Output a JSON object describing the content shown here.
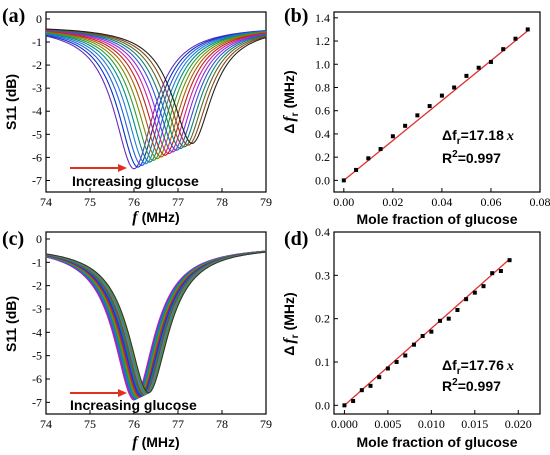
{
  "chart_data": [
    {
      "panel": "(a)",
      "type": "line",
      "xlabel_var": "f",
      "xlabel_unit": "(MHz)",
      "ylabel": "S11 (dB)",
      "xlim": [
        74,
        79
      ],
      "ylim": [
        -7.5,
        0.3
      ],
      "xticks": [
        "74",
        "75",
        "76",
        "77",
        "78",
        "79"
      ],
      "yticks": [
        "0",
        "-1",
        "-2",
        "-3",
        "-4",
        "-5",
        "-6",
        "-7"
      ],
      "annotation": "Increasing glucose",
      "curve_family": {
        "count": 16,
        "resonance_start_MHz": 76.0,
        "resonance_end_MHz": 77.32,
        "depth_start_dB": -6.35,
        "depth_end_dB": -5.25,
        "baseline_dB": -0.3
      },
      "series_colors": [
        "#6a2bb8",
        "#0033cc",
        "#2b5bd6",
        "#1f7fd0",
        "#008a8a",
        "#2aa02a",
        "#7a8a10",
        "#b05a00",
        "#c02020",
        "#d02090",
        "#8a2be2",
        "#3355cc",
        "#108070",
        "#556b2f",
        "#8b4513",
        "#222222"
      ]
    },
    {
      "panel": "(b)",
      "type": "scatter",
      "xlabel": "Mole fraction of glucose",
      "ylabel_main": "Δ",
      "ylabel_var": "f",
      "ylabel_sub": "r",
      "ylabel_unit": "(MHz)",
      "xlim": [
        -0.004,
        0.08
      ],
      "ylim": [
        -0.1,
        1.45
      ],
      "xticks": [
        "0.00",
        "0.02",
        "0.04",
        "0.06",
        "0.08"
      ],
      "yticks": [
        "0.0",
        "0.2",
        "0.4",
        "0.6",
        "0.8",
        "1.0",
        "1.2",
        "1.4"
      ],
      "x": [
        0.0,
        0.005,
        0.01,
        0.015,
        0.02,
        0.025,
        0.03,
        0.035,
        0.04,
        0.045,
        0.05,
        0.055,
        0.06,
        0.065,
        0.07,
        0.075
      ],
      "y": [
        0.0,
        0.09,
        0.19,
        0.27,
        0.38,
        0.47,
        0.56,
        0.64,
        0.73,
        0.8,
        0.9,
        0.97,
        1.02,
        1.13,
        1.22,
        1.3
      ],
      "fit_slope": 17.18,
      "fit_line_color": "#e03030",
      "fit_prefix": "Δf",
      "fit_sub": "r",
      "fit_value": "=17.18",
      "fit_var": "x",
      "r2_label": "R",
      "r2_exp": "2",
      "r2_value": "=0.997"
    },
    {
      "panel": "(c)",
      "type": "line",
      "xlabel_var": "f",
      "xlabel_unit": "(MHz)",
      "ylabel": "S11 (dB)",
      "xlim": [
        74,
        79
      ],
      "ylim": [
        -7.5,
        0.3
      ],
      "xticks": [
        "74",
        "75",
        "76",
        "77",
        "78",
        "79"
      ],
      "yticks": [
        "0",
        "-1",
        "-2",
        "-3",
        "-4",
        "-5",
        "-6",
        "-7"
      ],
      "annotation": "Increasing glucose",
      "curve_family": {
        "count": 20,
        "resonance_start_MHz": 76.0,
        "resonance_end_MHz": 76.33,
        "depth_start_dB": -6.75,
        "depth_end_dB": -6.45,
        "baseline_dB": -0.3
      },
      "series_colors": [
        "#d02090",
        "#8a2be2",
        "#3355cc",
        "#1f7fd0",
        "#008a8a",
        "#2aa02a",
        "#7a8a10",
        "#b05a00",
        "#c02020",
        "#6a2bb8",
        "#0033cc",
        "#2b5bd6",
        "#108070",
        "#556b2f",
        "#8b4513",
        "#5a7fa0",
        "#4682b4",
        "#2e8b57",
        "#6b8e23",
        "#333333"
      ]
    },
    {
      "panel": "(d)",
      "type": "scatter",
      "xlabel": "Mole fraction of glucose",
      "ylabel_main": "Δ",
      "ylabel_var": "f",
      "ylabel_sub": "r",
      "ylabel_unit": "(MHz)",
      "xlim": [
        -0.0012,
        0.0225
      ],
      "ylim": [
        -0.02,
        0.4
      ],
      "xticks": [
        "0.000",
        "0.005",
        "0.010",
        "0.015",
        "0.020"
      ],
      "yticks": [
        "0.0",
        "0.1",
        "0.2",
        "0.3",
        "0.4"
      ],
      "x": [
        0.0,
        0.001,
        0.002,
        0.003,
        0.004,
        0.005,
        0.006,
        0.007,
        0.008,
        0.009,
        0.01,
        0.011,
        0.012,
        0.013,
        0.014,
        0.015,
        0.016,
        0.017,
        0.018,
        0.019
      ],
      "y": [
        0.0,
        0.01,
        0.035,
        0.045,
        0.065,
        0.085,
        0.1,
        0.115,
        0.14,
        0.16,
        0.17,
        0.195,
        0.2,
        0.22,
        0.245,
        0.26,
        0.275,
        0.305,
        0.31,
        0.335
      ],
      "fit_slope": 17.76,
      "fit_line_color": "#e03030",
      "fit_prefix": "Δf",
      "fit_sub": "r",
      "fit_value": "=17.76",
      "fit_var": "x",
      "r2_label": "R",
      "r2_exp": "2",
      "r2_value": "=0.997"
    }
  ]
}
